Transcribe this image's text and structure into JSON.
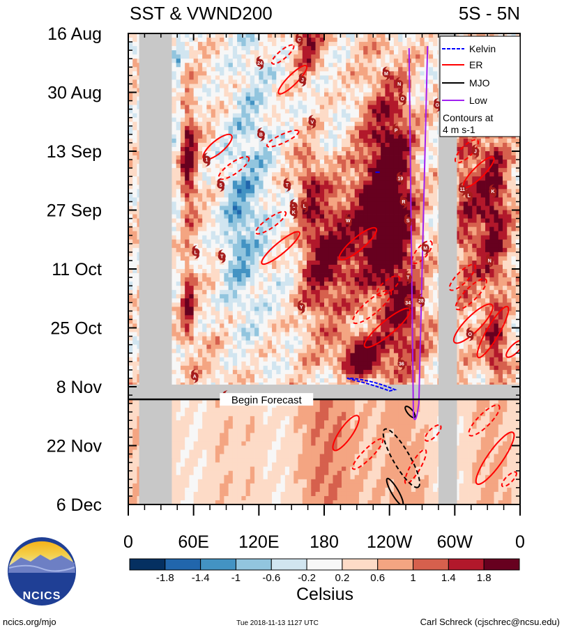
{
  "chart_data": {
    "type": "heatmap",
    "title_left": "SST & VWND200",
    "title_right": "5S - 5N",
    "y_tick_labels": [
      "16 Aug",
      "30 Aug",
      "13 Sep",
      "27 Sep",
      "11 Oct",
      "25 Oct",
      "8 Nov",
      "22 Nov",
      "6 Dec"
    ],
    "x_tick_labels": [
      "0",
      "60E",
      "120E",
      "180",
      "120W",
      "60W",
      "0"
    ],
    "x_range_deg_east": [
      0,
      360
    ],
    "y_range_days_since_aug16": [
      0,
      112
    ],
    "forecast_start_day": 87,
    "forecast_label": "Begin Forecast",
    "colorbar": {
      "title": "Celsius",
      "levels": [
        -1.8,
        -1.4,
        -1,
        -0.6,
        -0.2,
        0.2,
        0.6,
        1,
        1.4,
        1.8
      ],
      "level_labels": [
        "-1.8",
        "-1.4",
        "-1",
        "-0.6",
        "-0.2",
        "0.2",
        "0.6",
        "1",
        "1.4",
        "1.8"
      ],
      "colors": [
        "#053061",
        "#2166ac",
        "#4393c3",
        "#92c5de",
        "#d1e5f0",
        "#f7f7f7",
        "#fddbc7",
        "#f4a582",
        "#d6604d",
        "#b2182b",
        "#67001f"
      ]
    },
    "legend": [
      {
        "label": "Kelvin",
        "color": "#0000ff"
      },
      {
        "label": "ER",
        "color": "#ff0000"
      },
      {
        "label": "MJO",
        "color": "#000000"
      },
      {
        "label": "Low",
        "color": "#a020f0"
      }
    ],
    "legend_note": [
      "Contours at",
      "4 m s-1"
    ],
    "land_masks_deg": [
      [
        10,
        40
      ],
      [
        285,
        302
      ]
    ],
    "storms": [
      {
        "label": "C",
        "lon": 157,
        "day": 1.5
      },
      {
        "label": "24",
        "lon": 121,
        "day": 7
      },
      {
        "label": "J",
        "lon": 160,
        "day": 11
      },
      {
        "label": "M",
        "lon": 237,
        "day": 9.5
      },
      {
        "label": "N",
        "lon": 249,
        "day": 12
      },
      {
        "label": "O",
        "lon": 252,
        "day": 15.5
      },
      {
        "label": "P",
        "lon": 246,
        "day": 23
      },
      {
        "label": "G",
        "lon": 284,
        "day": 17
      },
      {
        "label": "V",
        "lon": 169,
        "day": 21
      },
      {
        "label": "B",
        "lon": 122,
        "day": 24
      },
      {
        "label": "1",
        "lon": 72,
        "day": 30
      },
      {
        "label": "J",
        "lon": 319,
        "day": 28
      },
      {
        "label": "19",
        "lon": 250,
        "day": 34.5
      },
      {
        "label": "5",
        "lon": 85,
        "day": 36
      },
      {
        "label": "T",
        "lon": 146,
        "day": 36
      },
      {
        "label": "11",
        "lon": 307,
        "day": 37
      },
      {
        "label": "K",
        "lon": 335,
        "day": 37.5
      },
      {
        "label": "L",
        "lon": 313,
        "day": 38.5
      },
      {
        "label": "R",
        "lon": 253,
        "day": 40
      },
      {
        "label": "L",
        "lon": 162,
        "day": 41
      },
      {
        "label": "L",
        "lon": 152,
        "day": 41
      },
      {
        "label": "K",
        "lon": 152,
        "day": 42.5
      },
      {
        "label": "W",
        "lon": 202,
        "day": 44.5
      },
      {
        "label": "S",
        "lon": 257,
        "day": 44.5
      },
      {
        "label": "M",
        "lon": 273,
        "day": 51
      },
      {
        "label": "L",
        "lon": 62,
        "day": 52
      },
      {
        "label": "T",
        "lon": 86,
        "day": 53
      },
      {
        "label": "N",
        "lon": 332,
        "day": 54
      },
      {
        "label": "T",
        "lon": 257,
        "day": 58
      },
      {
        "label": "34",
        "lon": 257,
        "day": 64
      },
      {
        "label": "28",
        "lon": 269,
        "day": 63.5
      },
      {
        "label": "Y",
        "lon": 159,
        "day": 65
      },
      {
        "label": "O",
        "lon": 314,
        "day": 71.5
      },
      {
        "label": "36",
        "lon": 251,
        "day": 78.5
      },
      {
        "label": "A",
        "lon": 61,
        "day": 81.5
      },
      {
        "label": "G",
        "lon": 90,
        "day": 86.5
      }
    ]
  },
  "footer": {
    "left": "ncics.org/mjo",
    "center": "Tue 2018-11-13 1127 UTC",
    "right": "Carl Schreck (cjschrec@ncsu.edu)",
    "logo_text": "NCICS"
  }
}
